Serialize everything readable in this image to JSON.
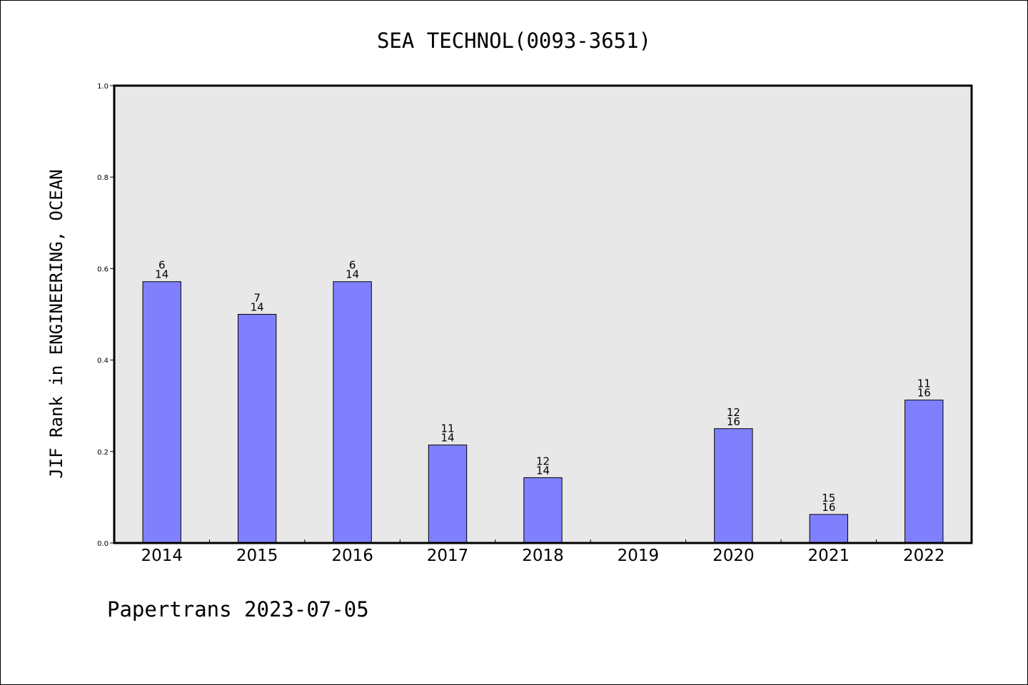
{
  "chart_data": {
    "type": "bar",
    "title": "SEA TECHNOL(0093-3651)",
    "xlabel": "",
    "ylabel": "JIF Rank in ENGINEERING, OCEAN",
    "categories": [
      "2014",
      "2015",
      "2016",
      "2017",
      "2018",
      "2019",
      "2020",
      "2021",
      "2022"
    ],
    "values": [
      0.5714,
      0.5,
      0.5714,
      0.2143,
      0.1429,
      null,
      0.25,
      0.0625,
      0.3125
    ],
    "bar_labels": [
      [
        "6",
        "14"
      ],
      [
        "7",
        "14"
      ],
      [
        "6",
        "14"
      ],
      [
        "11",
        "14"
      ],
      [
        "12",
        "14"
      ],
      null,
      [
        "12",
        "16"
      ],
      [
        "15",
        "16"
      ],
      [
        "11",
        "16"
      ]
    ],
    "ylim": [
      0,
      1.0
    ],
    "yticks": [
      "0.0",
      "0.2",
      "0.4",
      "0.6",
      "0.8",
      "1.0"
    ],
    "grid": false,
    "legend": "none",
    "colors": {
      "bar_fill": "#8080ff",
      "bar_edge": "#000000",
      "plot_background": "#e8e8e8",
      "frame": "#000000"
    }
  },
  "footer": {
    "text": "Papertrans 2023-07-05"
  }
}
